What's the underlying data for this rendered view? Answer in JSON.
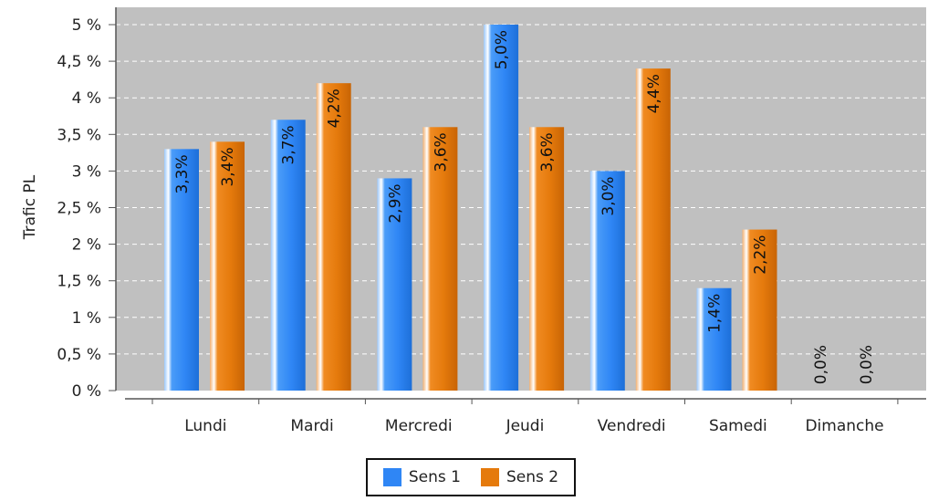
{
  "chart_data": {
    "type": "bar",
    "ylabel": "Trafic PL",
    "xlabel": "",
    "ylim": [
      0,
      5
    ],
    "ytick_step": 0.5,
    "ytick_labels": [
      "0 %",
      "0,5 %",
      "1 %",
      "1,5 %",
      "2 %",
      "2,5 %",
      "3 %",
      "3,5 %",
      "4 %",
      "4,5 %",
      "5 %"
    ],
    "grid": true,
    "legend_position": "bottom-center",
    "categories": [
      "Lundi",
      "Mardi",
      "Mercredi",
      "Jeudi",
      "Vendredi",
      "Samedi",
      "Dimanche"
    ],
    "series": [
      {
        "name": "Sens 1",
        "color": "#2f86f5",
        "values": [
          3.3,
          3.7,
          2.9,
          5.0,
          3.0,
          1.4,
          0.0
        ],
        "labels": [
          "3,3%",
          "3,7%",
          "2,9%",
          "5,0%",
          "3,0%",
          "1,4%",
          "0,0%"
        ]
      },
      {
        "name": "Sens 2",
        "color": "#e57a0c",
        "values": [
          3.4,
          4.2,
          3.6,
          3.6,
          4.4,
          2.2,
          0.0
        ],
        "labels": [
          "3,4%",
          "4,2%",
          "3,6%",
          "3,6%",
          "4,4%",
          "2,2%",
          "0,0%"
        ]
      }
    ]
  }
}
